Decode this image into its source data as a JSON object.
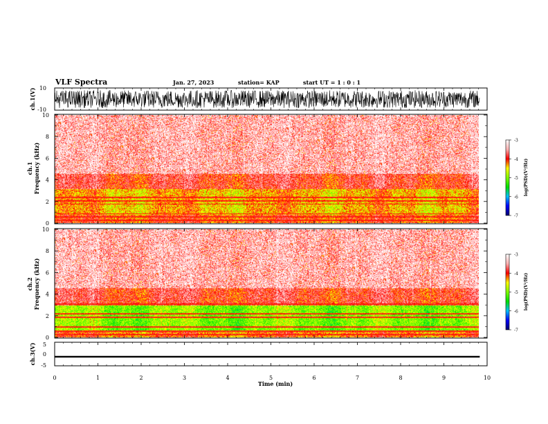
{
  "header": {
    "title": "VLF Spectra",
    "date": "Jan. 27, 2023",
    "station": "station= KAP",
    "start": "start  UT =   1 : 0  : 1"
  },
  "chart_data": {
    "type": "heatmap",
    "x_axis": {
      "label": "Time  (min)",
      "range": [
        0,
        10
      ],
      "ticks": [
        "0",
        "1",
        "2",
        "3",
        "4",
        "5",
        "6",
        "7",
        "8",
        "9",
        "10"
      ],
      "data_end": 9.83
    },
    "panels": [
      {
        "name": "ch.1 waveform",
        "type": "line",
        "ylabel": "ch.1(V)",
        "ylim": [
          -10,
          10
        ],
        "ticks": [
          "10",
          "-10"
        ],
        "amplitude_range": [
          -8,
          8
        ]
      },
      {
        "name": "ch.1 spectrogram",
        "type": "heatmap",
        "ylabel_top": "ch.1",
        "ylabel": "Frequency  (kHz)",
        "ylim": [
          0,
          10
        ],
        "ticks": [
          "0",
          "2",
          "4",
          "6",
          "8",
          "10"
        ],
        "colorbar": {
          "label": "log(PSD)(V²/Hz)",
          "range": [
            -7,
            -3
          ],
          "ticks": [
            "-3",
            "-4",
            "-5",
            "-6",
            "-7"
          ]
        },
        "bands": [
          {
            "from_khz": 0.0,
            "to_khz": 0.8,
            "level": -4.1
          },
          {
            "from_khz": 0.8,
            "to_khz": 3.2,
            "level": -4.4
          },
          {
            "from_khz": 3.2,
            "to_khz": 4.6,
            "level": -3.9
          },
          {
            "from_khz": 4.6,
            "to_khz": 10.0,
            "level": -3.3
          }
        ],
        "lines_khz": [
          0.3,
          0.6,
          0.9,
          1.8,
          2.1,
          2.4
        ]
      },
      {
        "name": "ch.2 spectrogram",
        "type": "heatmap",
        "ylabel_top": "ch.2",
        "ylabel": "Frequency  (kHz)",
        "ylim": [
          0,
          10
        ],
        "ticks": [
          "0",
          "2",
          "4",
          "6",
          "8",
          "10"
        ],
        "colorbar": {
          "label": "log(PSD)(V²/Hz)",
          "range": [
            -7,
            -3
          ],
          "ticks": [
            "-3",
            "-4",
            "-5",
            "-6",
            "-7"
          ]
        },
        "bands": [
          {
            "from_khz": 0.0,
            "to_khz": 0.6,
            "level": -4.2
          },
          {
            "from_khz": 0.6,
            "to_khz": 3.0,
            "level": -5.0
          },
          {
            "from_khz": 3.0,
            "to_khz": 4.6,
            "level": -3.9
          },
          {
            "from_khz": 4.6,
            "to_khz": 10.0,
            "level": -3.3
          }
        ],
        "lines_khz": [
          0.3,
          0.6,
          1.0,
          1.9,
          2.2,
          3.1
        ]
      },
      {
        "name": "ch.3 waveform",
        "type": "line",
        "ylabel": "ch.3(V)",
        "ylim": [
          -5,
          5
        ],
        "ticks": [
          "5",
          "0",
          "-5"
        ],
        "amplitude_range": [
          -1.5,
          -0.8
        ]
      }
    ],
    "colors": {
      "cbar_stops": [
        "#00006e",
        "#0000ff",
        "#00c0ff",
        "#00e000",
        "#80ff00",
        "#ffff00",
        "#ff0000",
        "#ffb0b0",
        "#ffffff"
      ]
    }
  }
}
